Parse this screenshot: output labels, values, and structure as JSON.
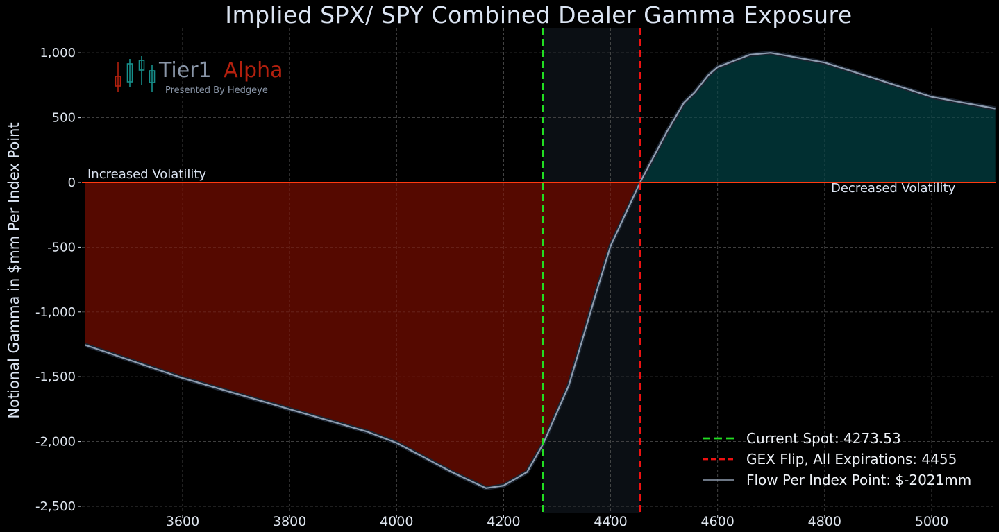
{
  "chart_data": {
    "type": "area",
    "title": "Implied SPX/ SPY Combined Dealer Gamma Exposure",
    "xlabel": "",
    "ylabel": "Notional Gamma in $mm Per Index Point",
    "xlim": [
      3418,
      5119
    ],
    "ylim": [
      -2560,
      1150
    ],
    "grid": true,
    "x_ticks": [
      3600,
      3800,
      4000,
      4200,
      4400,
      4600,
      4800,
      5000
    ],
    "x_tick_labels": [
      "3600",
      "3800",
      "4000",
      "4200",
      "4400",
      "4600",
      "4800",
      "5000"
    ],
    "y_ticks": [
      1000,
      500,
      0,
      -500,
      -1000,
      -1500,
      -2000,
      -2500
    ],
    "y_tick_labels": [
      "1,000",
      "500",
      "0",
      "-500",
      "-1,000",
      "-1,500",
      "-2,000",
      "-2,500"
    ],
    "series": [
      {
        "name": "Flow Per Index Point: $-2021mm",
        "color": "#8f9db0",
        "x": [
          3418,
          3600,
          3800,
          3946,
          4000,
          4103,
          4167,
          4200,
          4244,
          4273.53,
          4322,
          4374,
          4400,
          4455,
          4505,
          4537,
          4557,
          4583,
          4600,
          4660,
          4699,
          4800,
          4880,
          5000,
          5119
        ],
        "values": [
          -1255,
          -1510,
          -1750,
          -1925,
          -2010,
          -2235,
          -2360,
          -2340,
          -2235,
          -2021,
          -1565,
          -840,
          -490,
          0,
          390,
          615,
          695,
          830,
          890,
          985,
          1000,
          925,
          820,
          660,
          570
        ]
      }
    ],
    "reference_lines": [
      {
        "name": "Current Spot: 4273.53",
        "x": 4273.53,
        "color": "#22dd22",
        "style": "dashed"
      },
      {
        "name": "GEX Flip, All Expirations: 4455",
        "x": 4455,
        "color": "#ee1111",
        "style": "dashed"
      },
      {
        "name": "zero line",
        "y": 0,
        "color": "#ff3a10",
        "style": "solid"
      }
    ],
    "shaded_region": {
      "x": [
        4273.53,
        4455
      ],
      "color": "#0b0f14"
    },
    "fills": {
      "negative": "#5a0a00",
      "positive": "#013234"
    },
    "annotations": [
      {
        "text": "Increased Volatility",
        "x": 3430,
        "y": 40
      },
      {
        "text": "Decreased Volatility",
        "x": 4810,
        "y": -60
      }
    ],
    "legend_position": "lower right"
  },
  "legend": {
    "items": [
      {
        "label": "Current Spot: 4273.53",
        "color": "#22dd22",
        "style": "dashed"
      },
      {
        "label": "GEX Flip, All Expirations: 4455",
        "color": "#ee1111",
        "style": "dashed"
      },
      {
        "label": "Flow Per Index Point: $-2021mm",
        "color": "#8f9db0",
        "style": "solid"
      }
    ]
  },
  "logo": {
    "name_part1": "Tier1",
    "name_part2": "Alpha",
    "subtitle": "Presented By Hedgeye",
    "color_part1": "#8a96a8",
    "color_part2": "#b3200e"
  }
}
